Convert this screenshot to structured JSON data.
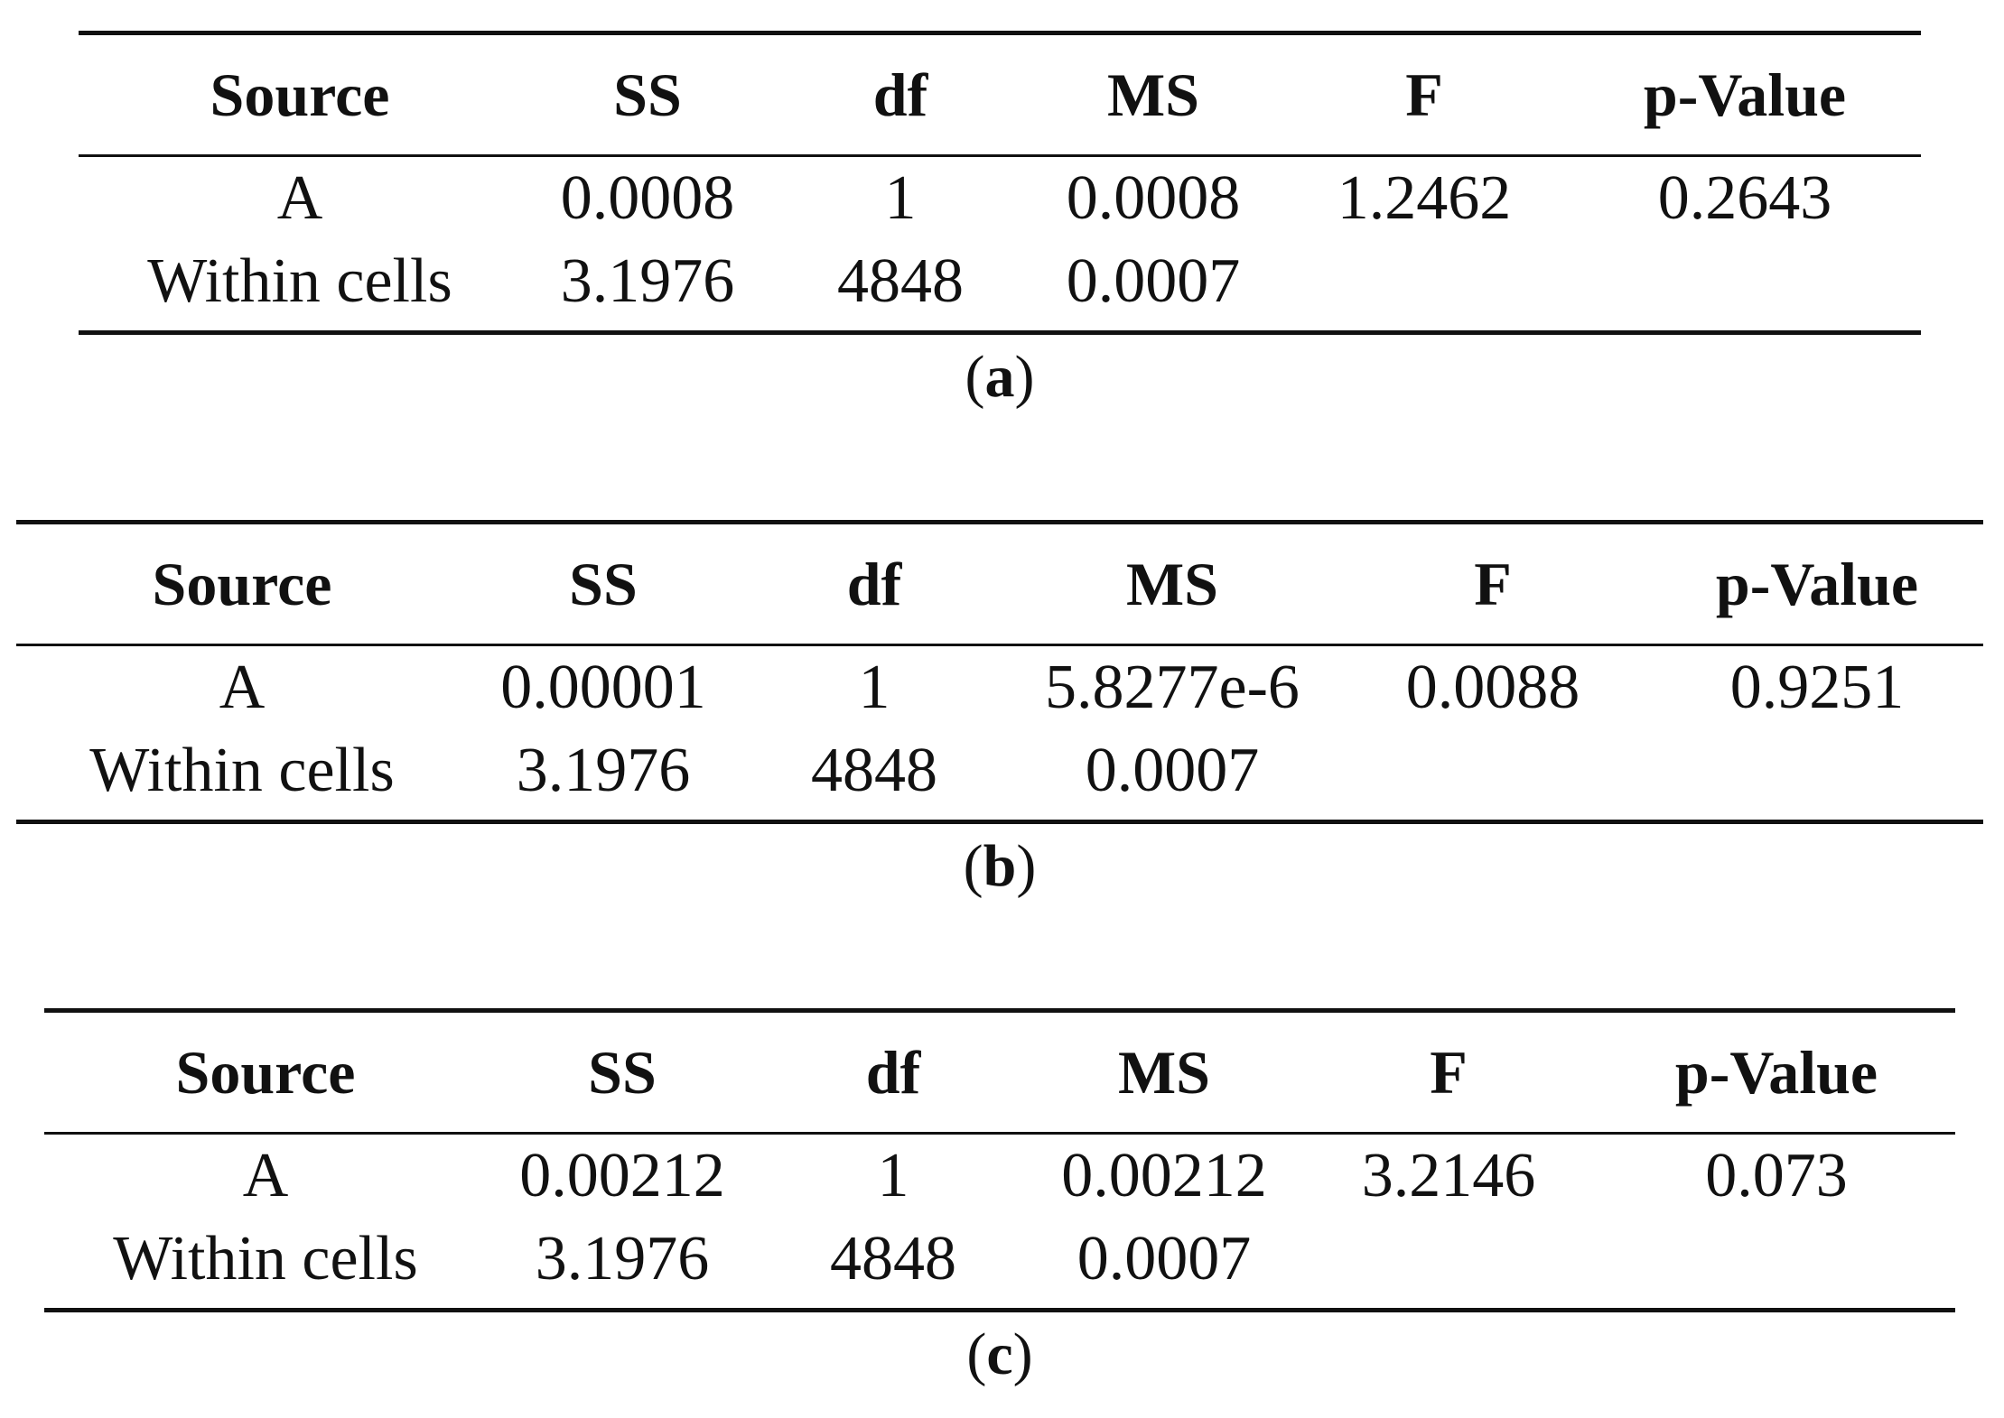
{
  "tables": [
    {
      "caption_letter": "a",
      "columns": [
        "Source",
        "SS",
        "df",
        "MS",
        "F",
        "p-Value"
      ],
      "rows": [
        [
          "A",
          "0.0008",
          "1",
          "0.0008",
          "1.2462",
          "0.2643"
        ],
        [
          "Within cells",
          "3.1976",
          "4848",
          "0.0007",
          "",
          ""
        ]
      ]
    },
    {
      "caption_letter": "b",
      "columns": [
        "Source",
        "SS",
        "df",
        "MS",
        "F",
        "p-Value"
      ],
      "rows": [
        [
          "A",
          "0.00001",
          "1",
          "5.8277e-6",
          "0.0088",
          "0.9251"
        ],
        [
          "Within cells",
          "3.1976",
          "4848",
          "0.0007",
          "",
          ""
        ]
      ]
    },
    {
      "caption_letter": "c",
      "columns": [
        "Source",
        "SS",
        "df",
        "MS",
        "F",
        "p-Value"
      ],
      "rows": [
        [
          "A",
          "0.00212",
          "1",
          "0.00212",
          "3.2146",
          "0.073"
        ],
        [
          "Within cells",
          "3.1976",
          "4848",
          "0.0007",
          "",
          ""
        ]
      ]
    }
  ]
}
